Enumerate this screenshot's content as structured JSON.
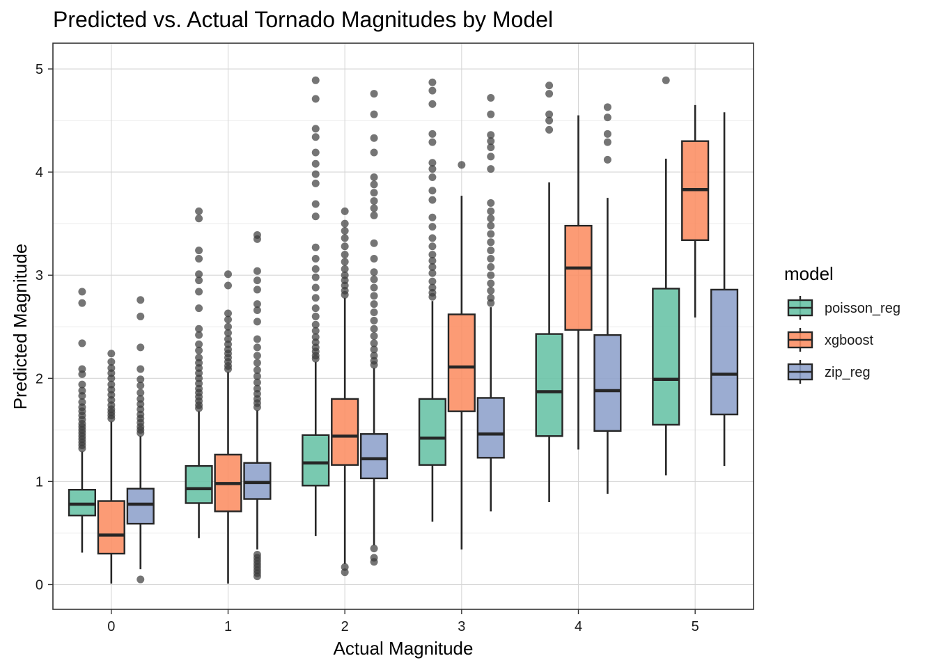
{
  "chart_data": {
    "type": "box",
    "title": "Predicted vs. Actual Tornado Magnitudes by Model",
    "xlabel": "Actual Magnitude",
    "ylabel": "Predicted Magnitude",
    "categories": [
      "0",
      "1",
      "2",
      "3",
      "4",
      "5"
    ],
    "ylim": [
      -0.24,
      5.25
    ],
    "y_ticks": [
      0,
      1,
      2,
      3,
      4,
      5
    ],
    "grid": true,
    "legend": {
      "title": "model",
      "position": "right"
    },
    "series": [
      {
        "name": "poisson_reg",
        "color": "#66c2a5",
        "boxes": [
          {
            "category": "0",
            "whisker_low": 0.31,
            "q1": 0.67,
            "median": 0.78,
            "q3": 0.92,
            "whisker_high": 1.29,
            "outliers": [
              1.32,
              1.35,
              1.38,
              1.41,
              1.44,
              1.47,
              1.5,
              1.53,
              1.56,
              1.6,
              1.64,
              1.68,
              1.72,
              1.77,
              1.83,
              1.88,
              1.94,
              2.04,
              2.09,
              2.34,
              2.73,
              2.84
            ]
          },
          {
            "category": "1",
            "whisker_low": 0.45,
            "q1": 0.79,
            "median": 0.93,
            "q3": 1.15,
            "whisker_high": 1.68,
            "outliers": [
              1.71,
              1.74,
              1.78,
              1.82,
              1.86,
              1.9,
              1.95,
              2.0,
              2.05,
              2.1,
              2.15,
              2.2,
              2.27,
              2.33,
              2.42,
              2.48,
              2.68,
              2.84,
              2.95,
              3.01,
              3.16,
              3.24,
              3.55,
              3.62
            ]
          },
          {
            "category": "2",
            "whisker_low": 0.47,
            "q1": 0.96,
            "median": 1.18,
            "q3": 1.45,
            "whisker_high": 2.16,
            "outliers": [
              2.19,
              2.22,
              2.26,
              2.3,
              2.35,
              2.4,
              2.46,
              2.52,
              2.6,
              2.68,
              2.78,
              2.88,
              2.98,
              3.06,
              3.16,
              3.27,
              3.57,
              3.69,
              3.89,
              3.98,
              4.08,
              4.19,
              4.34,
              4.42,
              4.71,
              4.89
            ]
          },
          {
            "category": "3",
            "whisker_low": 0.61,
            "q1": 1.16,
            "median": 1.42,
            "q3": 1.8,
            "whisker_high": 2.75,
            "outliers": [
              2.79,
              2.83,
              2.88,
              2.94,
              3.02,
              3.08,
              3.14,
              3.2,
              3.28,
              3.36,
              3.47,
              3.56,
              3.73,
              3.82,
              3.95,
              4.03,
              4.09,
              4.29,
              4.37,
              4.66,
              4.79,
              4.87
            ]
          },
          {
            "category": "4",
            "whisker_low": 0.8,
            "q1": 1.44,
            "median": 1.87,
            "q3": 2.43,
            "whisker_high": 3.9,
            "outliers": [
              4.41,
              4.5,
              4.56,
              4.76,
              4.84
            ]
          },
          {
            "category": "5",
            "whisker_low": 1.06,
            "q1": 1.55,
            "median": 1.99,
            "q3": 2.87,
            "whisker_high": 4.13,
            "outliers": [
              4.89
            ]
          }
        ]
      },
      {
        "name": "xgboost",
        "color": "#fc8d62",
        "boxes": [
          {
            "category": "0",
            "whisker_low": 0.01,
            "q1": 0.3,
            "median": 0.48,
            "q3": 0.81,
            "whisker_high": 1.58,
            "outliers": [
              1.61,
              1.64,
              1.67,
              1.7,
              1.74,
              1.79,
              1.84,
              1.89,
              1.94,
              2.0,
              2.05,
              2.1,
              2.16,
              2.24
            ]
          },
          {
            "category": "1",
            "whisker_low": 0.01,
            "q1": 0.71,
            "median": 0.98,
            "q3": 1.26,
            "whisker_high": 2.06,
            "outliers": [
              2.09,
              2.12,
              2.16,
              2.2,
              2.24,
              2.28,
              2.33,
              2.38,
              2.44,
              2.5,
              2.57,
              2.63,
              2.9,
              3.01
            ]
          },
          {
            "category": "2",
            "whisker_low": 0.2,
            "q1": 1.16,
            "median": 1.44,
            "q3": 1.8,
            "whisker_high": 2.78,
            "outliers": [
              0.12,
              0.17,
              2.81,
              2.85,
              2.9,
              2.95,
              3.0,
              3.06,
              3.13,
              3.2,
              3.28,
              3.36,
              3.43,
              3.5,
              3.62
            ]
          },
          {
            "category": "3",
            "whisker_low": 0.34,
            "q1": 1.68,
            "median": 2.11,
            "q3": 2.62,
            "whisker_high": 3.77,
            "outliers": [
              4.07
            ]
          },
          {
            "category": "4",
            "whisker_low": 1.31,
            "q1": 2.47,
            "median": 3.07,
            "q3": 3.48,
            "whisker_high": 4.55,
            "outliers": []
          },
          {
            "category": "5",
            "whisker_low": 2.59,
            "q1": 3.34,
            "median": 3.83,
            "q3": 4.3,
            "whisker_high": 4.65,
            "outliers": []
          }
        ]
      },
      {
        "name": "zip_reg",
        "color": "#8da0cb",
        "boxes": [
          {
            "category": "0",
            "whisker_low": 0.15,
            "q1": 0.59,
            "median": 0.78,
            "q3": 0.93,
            "whisker_high": 1.44,
            "outliers": [
              0.05,
              1.47,
              1.5,
              1.53,
              1.57,
              1.61,
              1.65,
              1.7,
              1.75,
              1.8,
              1.86,
              1.93,
              1.99,
              2.09,
              2.3,
              2.6,
              2.76
            ]
          },
          {
            "category": "1",
            "whisker_low": 0.34,
            "q1": 0.83,
            "median": 0.99,
            "q3": 1.18,
            "whisker_high": 1.69,
            "outliers": [
              0.08,
              0.11,
              0.14,
              0.17,
              0.2,
              0.23,
              0.26,
              0.29,
              1.72,
              1.76,
              1.8,
              1.85,
              1.9,
              1.96,
              2.02,
              2.08,
              2.15,
              2.22,
              2.3,
              2.38,
              2.55,
              2.66,
              2.72,
              2.86,
              2.95,
              3.04,
              3.35,
              3.39
            ]
          },
          {
            "category": "2",
            "whisker_low": 0.38,
            "q1": 1.03,
            "median": 1.22,
            "q3": 1.46,
            "whisker_high": 2.1,
            "outliers": [
              0.22,
              0.26,
              0.35,
              2.13,
              2.17,
              2.22,
              2.28,
              2.34,
              2.41,
              2.48,
              2.56,
              2.64,
              2.72,
              2.8,
              2.88,
              2.96,
              3.03,
              3.16,
              3.31,
              3.58,
              3.65,
              3.72,
              3.8,
              3.88,
              3.95,
              4.19,
              4.33,
              4.56,
              4.76
            ]
          },
          {
            "category": "3",
            "whisker_low": 0.71,
            "q1": 1.23,
            "median": 1.46,
            "q3": 1.81,
            "whisker_high": 2.69,
            "outliers": [
              2.73,
              2.78,
              2.85,
              2.92,
              3.0,
              3.08,
              3.16,
              3.24,
              3.32,
              3.4,
              3.48,
              3.55,
              3.62,
              3.7,
              4.03,
              4.15,
              4.24,
              4.3,
              4.36,
              4.56,
              4.72
            ]
          },
          {
            "category": "4",
            "whisker_low": 0.88,
            "q1": 1.49,
            "median": 1.88,
            "q3": 2.42,
            "whisker_high": 3.75,
            "outliers": [
              4.12,
              4.29,
              4.37,
              4.53,
              4.63
            ]
          },
          {
            "category": "5",
            "whisker_low": 1.15,
            "q1": 1.65,
            "median": 2.04,
            "q3": 2.86,
            "whisker_high": 4.58,
            "outliers": []
          }
        ]
      }
    ]
  }
}
